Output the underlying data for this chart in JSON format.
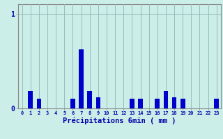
{
  "title": "",
  "xlabel": "Précipitations 6min ( mm )",
  "ylabel": "",
  "background_color": "#cceee8",
  "bar_color": "#0000cc",
  "grid_color": "#99bbbb",
  "xlim": [
    -0.5,
    23.5
  ],
  "ylim": [
    0,
    1.1
  ],
  "yticks": [
    0,
    1
  ],
  "xticks": [
    0,
    1,
    2,
    3,
    4,
    5,
    6,
    7,
    8,
    9,
    10,
    11,
    12,
    13,
    14,
    15,
    16,
    17,
    18,
    19,
    20,
    21,
    22,
    23
  ],
  "values": [
    0,
    0.18,
    0.1,
    0,
    0,
    0,
    0.1,
    0.62,
    0.18,
    0.12,
    0,
    0,
    0,
    0.1,
    0.1,
    0,
    0.1,
    0.18,
    0.12,
    0.1,
    0,
    0,
    0,
    0.1
  ],
  "bar_width": 0.55
}
